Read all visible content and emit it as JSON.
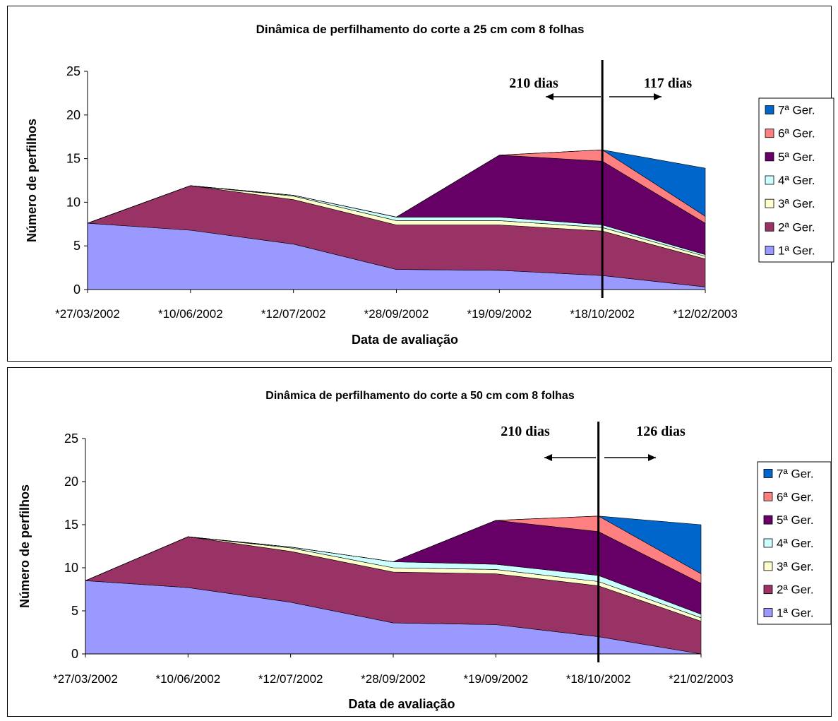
{
  "chart_data": [
    {
      "type": "area",
      "stacked": true,
      "title": "Dinâmica de perfilhamento do corte a 25 cm com 8 folhas",
      "xlabel": "Data de avaliação",
      "ylabel": "Número de perfilhos",
      "ylim": [
        0,
        25
      ],
      "yticks": [
        "0",
        "5",
        "10",
        "15",
        "20",
        "25"
      ],
      "categories": [
        "*27/03/2002",
        "*10/06/2002",
        "*12/07/2002",
        "*28/09/2002",
        "*19/09/2002",
        "*18/10/2002",
        "*12/02/2003"
      ],
      "legend_position": "right",
      "series": [
        {
          "name": "1ª Ger.",
          "color": "#9999FF",
          "values": [
            7.6,
            6.8,
            5.2,
            2.3,
            2.2,
            1.6,
            0.3
          ]
        },
        {
          "name": "2ª Ger.",
          "color": "#993366",
          "values": [
            0,
            5.1,
            5.1,
            5.1,
            5.2,
            5.1,
            3.2
          ]
        },
        {
          "name": "3ª Ger.",
          "color": "#FFFFCC",
          "values": [
            0,
            0,
            0.4,
            0.5,
            0.5,
            0.4,
            0.3
          ]
        },
        {
          "name": "4ª Ger.",
          "color": "#CCFFFF",
          "values": [
            0,
            0,
            0.1,
            0.4,
            0.4,
            0.3,
            0.2
          ]
        },
        {
          "name": "5ª Ger.",
          "color": "#660066",
          "values": [
            0,
            0,
            0,
            0,
            7.1,
            7.3,
            3.6
          ]
        },
        {
          "name": "6ª Ger.",
          "color": "#FF8080",
          "values": [
            0,
            0,
            0,
            0,
            0,
            1.3,
            0.8
          ]
        },
        {
          "name": "7ª Ger.",
          "color": "#0066CC",
          "values": [
            0,
            0,
            0,
            0,
            0,
            0,
            5.5
          ]
        }
      ],
      "cut_line_at": "*18/10/2002",
      "annotations": [
        "210 dias",
        "117 dias"
      ]
    },
    {
      "type": "area",
      "stacked": true,
      "title": "Dinâmica de perfilhamento do corte a 50 cm com 8 folhas",
      "xlabel": "Data de avaliação",
      "ylabel": "Número de perfilhos",
      "ylim": [
        0,
        25
      ],
      "yticks": [
        "0",
        "5",
        "10",
        "15",
        "20",
        "25"
      ],
      "categories": [
        "*27/03/2002",
        "*10/06/2002",
        "*12/07/2002",
        "*28/09/2002",
        "*19/09/2002",
        "*18/10/2002",
        "*21/02/2003"
      ],
      "legend_position": "right",
      "series": [
        {
          "name": "1ª Ger.",
          "color": "#9999FF",
          "values": [
            8.5,
            7.7,
            6.0,
            3.6,
            3.4,
            2.0,
            0
          ]
        },
        {
          "name": "2ª Ger.",
          "color": "#993366",
          "values": [
            0,
            5.9,
            5.9,
            5.9,
            5.9,
            5.9,
            3.8
          ]
        },
        {
          "name": "3ª Ger.",
          "color": "#FFFFCC",
          "values": [
            0,
            0,
            0.4,
            0.5,
            0.5,
            0.5,
            0.4
          ]
        },
        {
          "name": "4ª Ger.",
          "color": "#CCFFFF",
          "values": [
            0,
            0,
            0.1,
            0.7,
            0.6,
            0.7,
            0.4
          ]
        },
        {
          "name": "5ª Ger.",
          "color": "#660066",
          "values": [
            0,
            0,
            0,
            0,
            5.1,
            5.1,
            3.6
          ]
        },
        {
          "name": "6ª Ger.",
          "color": "#FF8080",
          "values": [
            0,
            0,
            0,
            0,
            0,
            1.8,
            1.1
          ]
        },
        {
          "name": "7ª Ger.",
          "color": "#0066CC",
          "values": [
            0,
            0,
            0,
            0,
            0,
            0,
            5.7
          ]
        }
      ],
      "cut_line_at": "*18/10/2002",
      "annotations": [
        "210 dias",
        "126 dias"
      ]
    }
  ]
}
